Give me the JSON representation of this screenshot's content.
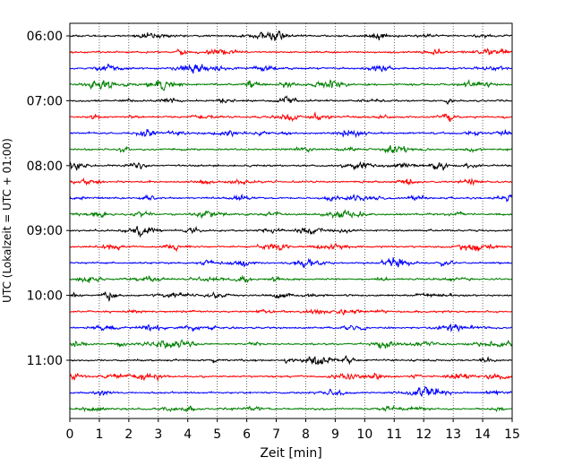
{
  "chart_data": {
    "type": "line",
    "title": "",
    "xlabel": "Zeit  [min]",
    "ylabel": "UTC (Lokalzeit = UTC + 01:00)",
    "xlim": [
      0,
      15
    ],
    "x_ticks": [
      0,
      1,
      2,
      3,
      4,
      5,
      6,
      7,
      8,
      9,
      10,
      11,
      12,
      13,
      14,
      15
    ],
    "x_tick_labels": [
      "0",
      "1",
      "2",
      "3",
      "4",
      "5",
      "6",
      "7",
      "8",
      "9",
      "10",
      "11",
      "12",
      "13",
      "14",
      "15"
    ],
    "y_ticks": [
      "06:00",
      "07:00",
      "08:00",
      "09:00",
      "10:00",
      "11:00"
    ],
    "grid": "vertical dotted at each minute",
    "trace_interval_min": 15,
    "trace_colors": [
      "#000000",
      "#ff0000",
      "#0000ff",
      "#008000"
    ],
    "traces": [
      {
        "start": "06:00",
        "color": "#000000"
      },
      {
        "start": "06:15",
        "color": "#ff0000"
      },
      {
        "start": "06:30",
        "color": "#0000ff"
      },
      {
        "start": "06:45",
        "color": "#008000"
      },
      {
        "start": "07:00",
        "color": "#000000"
      },
      {
        "start": "07:15",
        "color": "#ff0000"
      },
      {
        "start": "07:30",
        "color": "#0000ff"
      },
      {
        "start": "07:45",
        "color": "#008000"
      },
      {
        "start": "08:00",
        "color": "#000000"
      },
      {
        "start": "08:15",
        "color": "#ff0000"
      },
      {
        "start": "08:30",
        "color": "#0000ff"
      },
      {
        "start": "08:45",
        "color": "#008000"
      },
      {
        "start": "09:00",
        "color": "#000000"
      },
      {
        "start": "09:15",
        "color": "#ff0000"
      },
      {
        "start": "09:30",
        "color": "#0000ff"
      },
      {
        "start": "09:45",
        "color": "#008000"
      },
      {
        "start": "10:00",
        "color": "#000000"
      },
      {
        "start": "10:15",
        "color": "#ff0000"
      },
      {
        "start": "10:30",
        "color": "#0000ff"
      },
      {
        "start": "10:45",
        "color": "#008000"
      },
      {
        "start": "11:00",
        "color": "#000000"
      },
      {
        "start": "11:15",
        "color": "#ff0000"
      },
      {
        "start": "11:30",
        "color": "#0000ff"
      },
      {
        "start": "11:45",
        "color": "#008000"
      }
    ]
  }
}
